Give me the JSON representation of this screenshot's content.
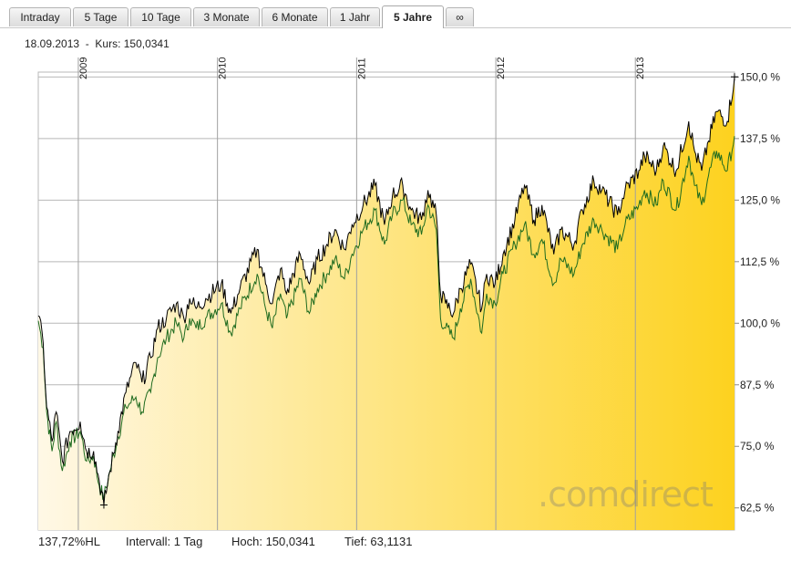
{
  "tabs": [
    {
      "label": "Intraday",
      "active": false
    },
    {
      "label": "5 Tage",
      "active": false
    },
    {
      "label": "10 Tage",
      "active": false
    },
    {
      "label": "3 Monate",
      "active": false
    },
    {
      "label": "6 Monate",
      "active": false
    },
    {
      "label": "1 Jahr",
      "active": false
    },
    {
      "label": "5 Jahre",
      "active": true
    },
    {
      "label": "∞",
      "active": false
    }
  ],
  "info_line": "18.09.2013  -  Kurs: 150,0341",
  "footer": {
    "mode": "137,72%HL",
    "interval": "Intervall: 1 Tag",
    "high": "Hoch: 150,0341",
    "low": "Tief: 63,1131"
  },
  "logo": {
    "text": ".comdirect"
  },
  "colors": {
    "main_line": "#000000",
    "compare_line": "#1f6b1f",
    "fill_light": "#fff8e6",
    "fill_dark": "#fdd21f",
    "grid": "#b8b8b8"
  },
  "chart_data": {
    "type": "line",
    "title": "",
    "xlabel": "",
    "ylabel": "",
    "x_start": "2008-09-18",
    "x_end": "2013-09-18",
    "x_tick_labels": [
      "2009",
      "2010",
      "2011",
      "2012",
      "2013"
    ],
    "y_tick_labels": [
      "150,0 %",
      "137,5 %",
      "125,0 %",
      "112,5 %",
      "100,0 %",
      "87,5 %",
      "75,0 %",
      "62,5 %"
    ],
    "y_ticks": [
      150,
      137.5,
      125,
      112.5,
      100,
      87.5,
      75,
      62.5
    ],
    "ylim": [
      58,
      151
    ],
    "grid": true,
    "series": [
      {
        "values": [
          [
            "2008-09-18",
            100.5
          ],
          [
            "2008-10-01",
            95
          ],
          [
            "2008-10-10",
            82
          ],
          [
            "2008-10-24",
            74
          ],
          [
            "2008-11-04",
            80
          ],
          [
            "2008-11-20",
            70
          ],
          [
            "2008-12-10",
            76
          ],
          [
            "2009-01-06",
            78
          ],
          [
            "2009-01-23",
            72
          ],
          [
            "2009-02-10",
            73
          ],
          [
            "2009-02-25",
            67
          ],
          [
            "2009-03-09",
            64.5
          ],
          [
            "2009-03-25",
            70
          ],
          [
            "2009-04-15",
            77
          ],
          [
            "2009-05-06",
            83
          ],
          [
            "2009-06-01",
            85
          ],
          [
            "2009-06-17",
            82
          ],
          [
            "2009-07-10",
            86
          ],
          [
            "2009-07-28",
            93
          ],
          [
            "2009-08-20",
            97
          ],
          [
            "2009-09-15",
            100
          ],
          [
            "2009-10-05",
            97
          ],
          [
            "2009-10-20",
            101
          ],
          [
            "2009-11-06",
            99
          ],
          [
            "2009-12-01",
            101
          ],
          [
            "2010-01-11",
            104
          ],
          [
            "2010-02-05",
            98
          ],
          [
            "2010-03-01",
            103
          ],
          [
            "2010-04-15",
            110
          ],
          [
            "2010-05-07",
            103
          ],
          [
            "2010-05-25",
            99
          ],
          [
            "2010-06-15",
            106
          ],
          [
            "2010-07-01",
            101
          ],
          [
            "2010-08-06",
            109
          ],
          [
            "2010-08-30",
            102
          ],
          [
            "2010-09-20",
            107
          ],
          [
            "2010-10-15",
            110
          ],
          [
            "2010-11-05",
            113
          ],
          [
            "2010-11-30",
            109
          ],
          [
            "2010-12-20",
            114
          ],
          [
            "2011-01-18",
            119
          ],
          [
            "2011-02-18",
            123
          ],
          [
            "2011-03-15",
            116
          ],
          [
            "2011-04-05",
            122
          ],
          [
            "2011-05-02",
            125
          ],
          [
            "2011-05-24",
            120
          ],
          [
            "2011-06-20",
            118
          ],
          [
            "2011-07-07",
            124
          ],
          [
            "2011-07-29",
            119
          ],
          [
            "2011-08-09",
            101
          ],
          [
            "2011-08-22",
            99
          ],
          [
            "2011-09-12",
            97
          ],
          [
            "2011-09-30",
            103
          ],
          [
            "2011-10-27",
            109
          ],
          [
            "2011-11-25",
            98
          ],
          [
            "2011-12-08",
            106
          ],
          [
            "2011-12-30",
            104
          ],
          [
            "2012-01-20",
            110
          ],
          [
            "2012-02-20",
            116
          ],
          [
            "2012-03-16",
            120
          ],
          [
            "2012-04-10",
            114
          ],
          [
            "2012-05-01",
            117
          ],
          [
            "2012-06-01",
            108
          ],
          [
            "2012-06-20",
            113
          ],
          [
            "2012-07-24",
            110
          ],
          [
            "2012-08-15",
            116
          ],
          [
            "2012-09-14",
            121
          ],
          [
            "2012-10-05",
            119
          ],
          [
            "2012-11-15",
            115
          ],
          [
            "2012-12-05",
            120
          ],
          [
            "2013-01-10",
            124
          ],
          [
            "2013-01-25",
            127
          ],
          [
            "2013-02-25",
            124
          ],
          [
            "2013-03-15",
            129
          ],
          [
            "2013-04-18",
            123
          ],
          [
            "2013-05-21",
            134
          ],
          [
            "2013-06-05",
            128
          ],
          [
            "2013-06-24",
            124
          ],
          [
            "2013-07-12",
            130
          ],
          [
            "2013-08-02",
            135
          ],
          [
            "2013-08-30",
            131
          ],
          [
            "2013-09-18",
            138
          ]
        ]
      },
      {
        "values": [
          [
            "2008-09-18",
            101.5
          ],
          [
            "2008-10-01",
            96
          ],
          [
            "2008-10-10",
            83
          ],
          [
            "2008-10-24",
            76
          ],
          [
            "2008-11-04",
            82
          ],
          [
            "2008-11-20",
            72
          ],
          [
            "2008-12-10",
            78
          ],
          [
            "2009-01-06",
            80
          ],
          [
            "2009-01-23",
            74
          ],
          [
            "2009-02-10",
            74
          ],
          [
            "2009-02-25",
            68
          ],
          [
            "2009-03-09",
            63.1
          ],
          [
            "2009-03-25",
            70
          ],
          [
            "2009-04-15",
            78
          ],
          [
            "2009-05-06",
            86
          ],
          [
            "2009-06-01",
            92
          ],
          [
            "2009-06-17",
            88
          ],
          [
            "2009-07-10",
            93
          ],
          [
            "2009-07-28",
            99
          ],
          [
            "2009-08-20",
            101
          ],
          [
            "2009-09-15",
            104
          ],
          [
            "2009-10-05",
            101
          ],
          [
            "2009-10-20",
            105
          ],
          [
            "2009-11-06",
            103
          ],
          [
            "2009-12-01",
            105
          ],
          [
            "2010-01-11",
            108
          ],
          [
            "2010-02-05",
            102
          ],
          [
            "2010-03-01",
            107
          ],
          [
            "2010-04-15",
            115
          ],
          [
            "2010-05-07",
            108
          ],
          [
            "2010-05-25",
            104
          ],
          [
            "2010-06-15",
            111
          ],
          [
            "2010-07-01",
            106
          ],
          [
            "2010-08-06",
            114
          ],
          [
            "2010-08-30",
            108
          ],
          [
            "2010-09-20",
            113
          ],
          [
            "2010-10-15",
            116
          ],
          [
            "2010-11-05",
            119
          ],
          [
            "2010-11-30",
            115
          ],
          [
            "2010-12-20",
            120
          ],
          [
            "2011-01-18",
            124
          ],
          [
            "2011-02-18",
            128
          ],
          [
            "2011-03-15",
            120
          ],
          [
            "2011-04-05",
            126
          ],
          [
            "2011-05-02",
            128
          ],
          [
            "2011-05-24",
            123
          ],
          [
            "2011-06-20",
            121
          ],
          [
            "2011-07-07",
            127
          ],
          [
            "2011-07-29",
            122
          ],
          [
            "2011-08-09",
            106
          ],
          [
            "2011-08-22",
            104
          ],
          [
            "2011-09-12",
            102
          ],
          [
            "2011-09-30",
            107
          ],
          [
            "2011-10-27",
            112
          ],
          [
            "2011-11-25",
            103
          ],
          [
            "2011-12-08",
            110
          ],
          [
            "2011-12-30",
            108
          ],
          [
            "2012-01-20",
            114
          ],
          [
            "2012-02-20",
            121
          ],
          [
            "2012-03-16",
            128
          ],
          [
            "2012-04-10",
            121
          ],
          [
            "2012-05-01",
            124
          ],
          [
            "2012-06-01",
            114
          ],
          [
            "2012-06-20",
            119
          ],
          [
            "2012-07-24",
            116
          ],
          [
            "2012-08-15",
            123
          ],
          [
            "2012-09-14",
            129
          ],
          [
            "2012-10-05",
            127
          ],
          [
            "2012-11-15",
            122
          ],
          [
            "2012-12-05",
            127
          ],
          [
            "2013-01-10",
            131
          ],
          [
            "2013-01-25",
            134
          ],
          [
            "2013-02-25",
            131
          ],
          [
            "2013-03-15",
            136
          ],
          [
            "2013-04-18",
            131
          ],
          [
            "2013-05-21",
            141
          ],
          [
            "2013-06-05",
            135
          ],
          [
            "2013-06-24",
            131
          ],
          [
            "2013-07-12",
            137
          ],
          [
            "2013-08-02",
            143
          ],
          [
            "2013-08-30",
            141
          ],
          [
            "2013-09-18",
            150.03
          ]
        ]
      }
    ]
  }
}
